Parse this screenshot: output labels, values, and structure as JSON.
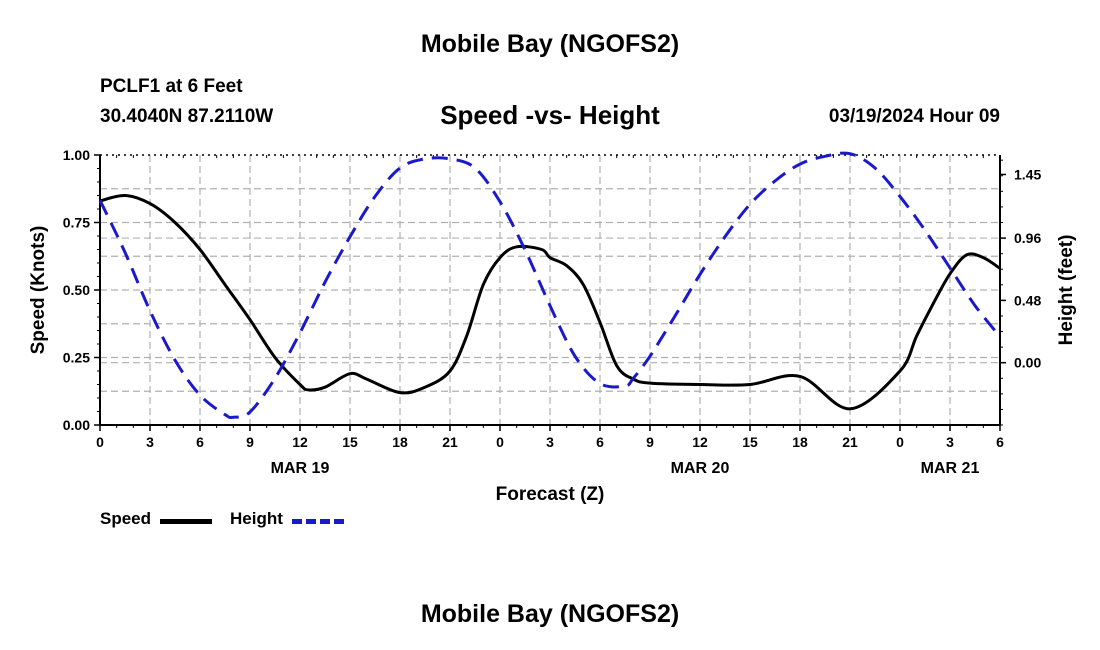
{
  "header": {
    "title": "Mobile Bay (NGOFS2)",
    "station": "PCLF1 at 6 Feet",
    "coordinates": "30.4040N  87.2110W",
    "subtitle": "Speed -vs- Height",
    "datetime": "03/19/2024 Hour 09"
  },
  "footer": {
    "title": "Mobile Bay (NGOFS2)"
  },
  "legend": {
    "speed_label": "Speed",
    "height_label": "Height"
  },
  "colors": {
    "speed": "#000000",
    "height": "#1a1acc",
    "grid": "#b0b0b0"
  },
  "chart_data": {
    "type": "line",
    "title": "Speed -vs- Height",
    "xlabel": "Forecast (Z)",
    "ylabel": "Speed (Knots)",
    "y2label": "Height (feet)",
    "x_ticks": [
      "0",
      "3",
      "6",
      "9",
      "12",
      "15",
      "18",
      "21",
      "0",
      "3",
      "6",
      "9",
      "12",
      "15",
      "18",
      "21",
      "0",
      "3",
      "6"
    ],
    "day_labels": [
      {
        "label": "MAR 19",
        "x": 12
      },
      {
        "label": "MAR 20",
        "x": 36
      },
      {
        "label": "MAR 21",
        "x": 51
      }
    ],
    "xlim": [
      0,
      54
    ],
    "ylim": [
      0,
      1.0
    ],
    "y_ticks": [
      "0.00",
      "0.25",
      "0.50",
      "0.75",
      "1.00"
    ],
    "y2lim": [
      -0.48,
      1.6
    ],
    "y2_ticks": [
      "0.00",
      "0.48",
      "0.96",
      "1.45"
    ],
    "grid": true,
    "legend_position": "bottom-left",
    "series": [
      {
        "name": "Speed",
        "axis": "left",
        "style": "solid",
        "x": [
          0,
          1.5,
          3,
          4.5,
          6,
          7.5,
          9,
          10.5,
          12,
          12.5,
          13.5,
          15,
          16,
          18,
          19.5,
          21,
          22,
          23,
          24,
          25,
          26.5,
          27,
          28,
          29,
          30,
          31,
          32,
          33,
          36,
          39,
          42,
          45,
          48,
          49,
          50,
          51,
          52,
          53,
          54
        ],
        "values": [
          0.83,
          0.85,
          0.82,
          0.75,
          0.65,
          0.52,
          0.39,
          0.25,
          0.15,
          0.13,
          0.14,
          0.19,
          0.17,
          0.12,
          0.14,
          0.2,
          0.33,
          0.52,
          0.62,
          0.66,
          0.65,
          0.62,
          0.59,
          0.52,
          0.38,
          0.22,
          0.17,
          0.155,
          0.15,
          0.15,
          0.18,
          0.06,
          0.2,
          0.33,
          0.45,
          0.56,
          0.63,
          0.62,
          0.58
        ]
      },
      {
        "name": "Height",
        "axis": "right",
        "style": "dashed",
        "x": [
          0,
          1.5,
          3,
          4.5,
          6,
          7.5,
          8,
          9,
          10.5,
          12,
          13.5,
          15,
          16.5,
          18,
          19.5,
          21,
          22.5,
          24,
          25.5,
          27,
          28.5,
          30,
          31.5,
          32,
          33,
          34.5,
          36,
          37.5,
          39,
          40.5,
          42,
          43.5,
          45,
          46.5,
          48,
          49.5,
          51,
          52.5,
          54
        ],
        "values": [
          1.25,
          0.85,
          0.4,
          0.02,
          -0.25,
          -0.4,
          -0.42,
          -0.38,
          -0.12,
          0.23,
          0.62,
          0.97,
          1.28,
          1.5,
          1.57,
          1.57,
          1.5,
          1.24,
          0.87,
          0.44,
          0.05,
          -0.16,
          -0.18,
          -0.12,
          0.05,
          0.36,
          0.68,
          0.97,
          1.22,
          1.4,
          1.53,
          1.59,
          1.61,
          1.5,
          1.28,
          1.02,
          0.73,
          0.44,
          0.2
        ]
      }
    ]
  }
}
